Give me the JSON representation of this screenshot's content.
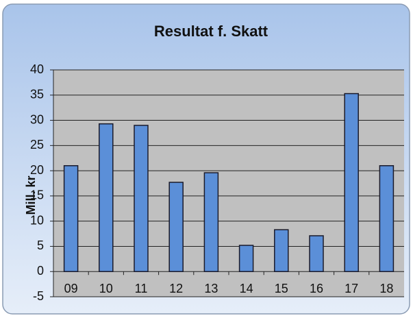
{
  "chart_data": {
    "type": "bar",
    "title": "Resultat f. Skatt",
    "y_label": "Mill. kr",
    "categories": [
      "09",
      "10",
      "11",
      "12",
      "13",
      "14",
      "15",
      "16",
      "17",
      "18"
    ],
    "values": [
      21,
      29.3,
      29,
      17.7,
      19.6,
      5.2,
      8.3,
      7.1,
      35.3,
      21
    ],
    "color": "#5b8fd8",
    "ylim": [
      -5,
      40
    ],
    "yticks": [
      -5,
      0,
      5,
      10,
      15,
      20,
      25,
      30,
      35,
      40
    ],
    "grid": true
  }
}
